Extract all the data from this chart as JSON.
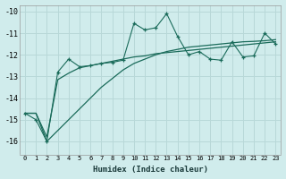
{
  "xlabel": "Humidex (Indice chaleur)",
  "background_color": "#d0ecec",
  "grid_color": "#b8d8d8",
  "line_color": "#1a6b5a",
  "xlim": [
    -0.5,
    23.5
  ],
  "ylim": [
    -16.6,
    -9.7
  ],
  "yticks": [
    -16,
    -15,
    -14,
    -13,
    -12,
    -11,
    -10
  ],
  "xticks": [
    0,
    1,
    2,
    3,
    4,
    5,
    6,
    7,
    8,
    9,
    10,
    11,
    12,
    13,
    14,
    15,
    16,
    17,
    18,
    19,
    20,
    21,
    22,
    23
  ],
  "s1": [
    -14.7,
    -15.0,
    -16.0,
    -12.8,
    -12.2,
    -12.55,
    -12.5,
    -12.4,
    -12.35,
    -12.25,
    -10.55,
    -10.85,
    -10.75,
    -10.1,
    -11.15,
    -12.0,
    -11.85,
    -12.2,
    -12.25,
    -11.4,
    -12.1,
    -12.05,
    -11.0,
    -11.5
  ],
  "s2": [
    -14.7,
    -14.7,
    -15.8,
    -13.15,
    -12.85,
    -12.6,
    -12.5,
    -12.4,
    -12.3,
    -12.2,
    -12.1,
    -12.05,
    -11.95,
    -11.9,
    -11.85,
    -11.8,
    -11.75,
    -11.7,
    -11.65,
    -11.6,
    -11.55,
    -11.5,
    -11.45,
    -11.4
  ],
  "s3": [
    -14.7,
    -14.7,
    -16.0,
    -15.5,
    -15.0,
    -14.5,
    -14.0,
    -13.5,
    -13.1,
    -12.7,
    -12.4,
    -12.2,
    -12.0,
    -11.85,
    -11.75,
    -11.65,
    -11.6,
    -11.55,
    -11.5,
    -11.45,
    -11.4,
    -11.38,
    -11.35,
    -11.3
  ]
}
